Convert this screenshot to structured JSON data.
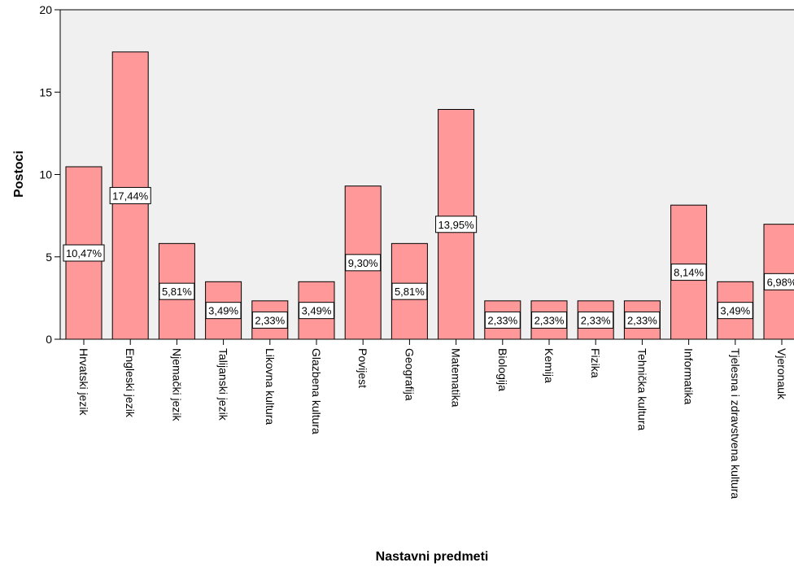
{
  "chart_data": {
    "type": "bar",
    "title": "",
    "xlabel": "Nastavni predmeti",
    "ylabel": "Postoci",
    "ylim": [
      0,
      20
    ],
    "yticks": [
      0,
      5,
      10,
      15,
      20
    ],
    "grid": false,
    "bar_color": "#ff9999",
    "bar_stroke": "#000000",
    "plot_background": "#f0f0f0",
    "categories": [
      "Hrvatski jezik",
      "Engleski jezik",
      "Njemački jezik",
      "Talijanski jezik",
      "Likovna kultura",
      "Glazbena kultura",
      "Povijest",
      "Geografija",
      "Matematika",
      "Biologija",
      "Kemija",
      "Fizika",
      "Tehnička kultura",
      "Informatika",
      "Tjelesna i zdravstvena kultura",
      "Vjeronauk"
    ],
    "values": [
      10.47,
      17.44,
      5.81,
      3.49,
      2.33,
      3.49,
      9.3,
      5.81,
      13.95,
      2.33,
      2.33,
      2.33,
      2.33,
      8.14,
      3.49,
      6.98
    ],
    "data_labels": [
      "10,47%",
      "17,44%",
      "5,81%",
      "3,49%",
      "2,33%",
      "3,49%",
      "9,30%",
      "5,81%",
      "13,95%",
      "2,33%",
      "2,33%",
      "2,33%",
      "2,33%",
      "8,14%",
      "3,49%",
      "6,98%"
    ]
  }
}
